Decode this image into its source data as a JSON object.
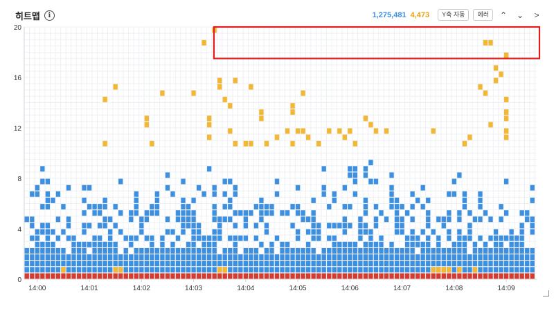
{
  "header": {
    "title": "히트맵",
    "info_icon": "info-icon",
    "count_total": "1,275,481",
    "count_error": "4,473",
    "btn_yaxis": "Y축 자동",
    "btn_error": "에러",
    "colors": {
      "normal": "#3d8fe0",
      "slow": "#f2b835",
      "error": "#d63b30",
      "highlight": "#e31b1b"
    }
  },
  "chart_data": {
    "type": "heatmap",
    "xlabel": "",
    "ylabel": "",
    "ylim": [
      0,
      20
    ],
    "y_ticks": [
      "0",
      "4",
      "8",
      "12",
      "16",
      "20"
    ],
    "x_ticks": [
      "14:00",
      "14:01",
      "14:02",
      "14:03",
      "14:04",
      "14:05",
      "14:06",
      "14:07",
      "14:08",
      "14:09"
    ],
    "x_range": [
      "13:59:45",
      "14:09:35"
    ],
    "cells_per_minute": 10,
    "bin_height": 0.5,
    "grid": true,
    "highlighted_region": {
      "x_from": "14:03:25",
      "x_to": "14:10:00",
      "y_from": 17.5,
      "y_to": 20
    }
  }
}
